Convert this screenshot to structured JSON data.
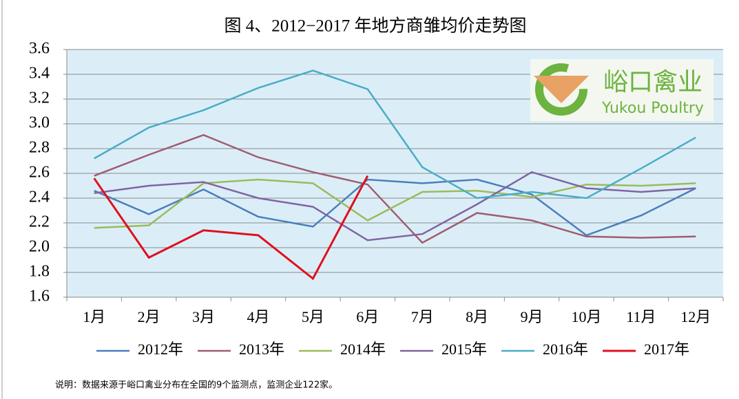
{
  "chart_data": {
    "type": "line",
    "title": "图 4、2012−2017 年地方商雏均价走势图",
    "categories": [
      "1月",
      "2月",
      "3月",
      "4月",
      "5月",
      "6月",
      "7月",
      "8月",
      "9月",
      "10月",
      "11月",
      "12月"
    ],
    "series": [
      {
        "name": "2012年",
        "color": "#4a7ebb",
        "values": [
          2.46,
          2.27,
          2.47,
          2.25,
          2.17,
          2.55,
          2.52,
          2.55,
          2.43,
          2.1,
          2.26,
          2.48
        ]
      },
      {
        "name": "2013年",
        "color": "#a05c6f",
        "values": [
          2.58,
          2.75,
          2.91,
          2.73,
          2.61,
          2.51,
          2.04,
          2.28,
          2.22,
          2.09,
          2.08,
          2.09
        ]
      },
      {
        "name": "2014年",
        "color": "#9bbb59",
        "values": [
          2.16,
          2.18,
          2.52,
          2.55,
          2.52,
          2.22,
          2.45,
          2.46,
          2.41,
          2.51,
          2.5,
          2.52
        ]
      },
      {
        "name": "2015年",
        "color": "#8064a2",
        "values": [
          2.44,
          2.5,
          2.53,
          2.4,
          2.33,
          2.06,
          2.11,
          2.35,
          2.61,
          2.48,
          2.45,
          2.48
        ]
      },
      {
        "name": "2016年",
        "color": "#4bacc6",
        "values": [
          2.72,
          2.97,
          3.11,
          3.29,
          3.43,
          3.28,
          2.65,
          2.4,
          2.45,
          2.4,
          2.64,
          2.89
        ]
      },
      {
        "name": "2017年",
        "color": "#e0101c",
        "values": [
          2.56,
          1.92,
          2.14,
          2.1,
          1.75,
          2.58,
          null,
          null,
          null,
          null,
          null,
          null
        ]
      }
    ],
    "ylim": [
      1.6,
      3.6
    ],
    "yticks": [
      1.6,
      1.8,
      {
        "value": 2.0,
        "label": "2.0"
      },
      2.2,
      2.4,
      2.6,
      2.8,
      {
        "value": 3.0,
        "label": "3.0"
      },
      3.2,
      3.4,
      3.6
    ],
    "grid": true,
    "legend": "bottom",
    "logo": {
      "name": "峪口禽业",
      "subtitle": "Yukou Poultry"
    },
    "note": "说明：数据来源于峪口禽业分布在全国的9个监测点，监测企业122家。"
  }
}
